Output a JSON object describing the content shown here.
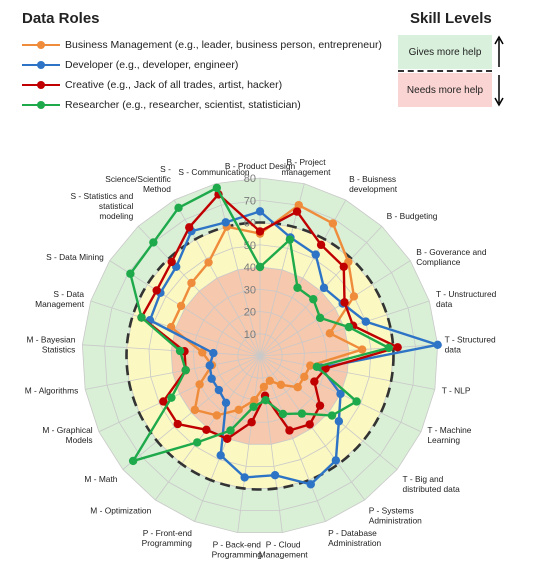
{
  "legend": {
    "title": "Data Roles",
    "items": [
      {
        "label": "Business Management (e.g., leader, business person, entrepreneur)",
        "color": "#ef8c3b",
        "icon": "line-dot-marker"
      },
      {
        "label": "Developer (e.g., developer, engineer)",
        "color": "#2e74c6",
        "icon": "line-dot-marker"
      },
      {
        "label": "Creative (e.g., Jack of all trades, artist, hacker)",
        "color": "#c00000",
        "icon": "line-dot-marker"
      },
      {
        "label": "Researcher (e.g., researcher, scientist, statistician)",
        "color": "#1ea94b",
        "icon": "line-dot-marker"
      }
    ]
  },
  "skill_levels": {
    "title": "Skill Levels",
    "more": "Gives more help",
    "less": "Needs more help",
    "arrow_icons": [
      "arrow-up-icon",
      "arrow-down-icon"
    ]
  },
  "chart_data": {
    "type": "radar",
    "rlim": [
      0,
      80
    ],
    "r_ticks": [
      "10",
      "20",
      "30",
      "40",
      "50",
      "60",
      "70",
      "80"
    ],
    "grid": true,
    "threshold": 60,
    "bands": [
      {
        "from": 0,
        "to": 40,
        "color": "#f6c8ad"
      },
      {
        "from": 40,
        "to": 60,
        "color": "#fbf8c2"
      },
      {
        "from": 60,
        "to": 80,
        "color": "#d9efd6"
      }
    ],
    "categories": [
      "B - Product Design",
      "B - Project management",
      "B - Buisness development",
      "B - Budgeting",
      "B - Goverance and Compliance",
      "T - Unstructured data",
      "T - Structured data",
      "T - NLP",
      "T - Machine Learning",
      "T - Big and distributed data",
      "P - Systems Administration",
      "P - Database Administration",
      "P - Cloud Management",
      "P - Back-end Programming",
      "P - Front-end Programming",
      "M - Optimization",
      "M - Math",
      "M - Graphical Models",
      "M - Algorithms",
      "M - Bayesian Statistics",
      "S - Data Management",
      "S - Data Mining",
      "S - Statistics and statistical modeling",
      "S - Science/Scientific Method",
      "S - Communication"
    ],
    "series": [
      {
        "name": "Business Management",
        "color": "#ef8c3b",
        "values": [
          55,
          70,
          68,
          58,
          50,
          33,
          46,
          23,
          22,
          22,
          16,
          12,
          14,
          20,
          26,
          33,
          38,
          30,
          22,
          26,
          42,
          42,
          45,
          48,
          60
        ]
      },
      {
        "name": "Developer",
        "color": "#2e74c6",
        "values": [
          65,
          55,
          52,
          42,
          44,
          50,
          80,
          28,
          40,
          46,
          58,
          62,
          54,
          55,
          48,
          26,
          24,
          24,
          23,
          21,
          52,
          53,
          55,
          64,
          62
        ]
      },
      {
        "name": "Creative",
        "color": "#c00000",
        "values": [
          56,
          67,
          57,
          55,
          45,
          44,
          62,
          30,
          27,
          35,
          38,
          36,
          18,
          30,
          40,
          41,
          48,
          48,
          34,
          34,
          56,
          55,
          58,
          66,
          75
        ]
      },
      {
        "name": "Researcher",
        "color": "#1ea94b",
        "values": [
          40,
          54,
          35,
          35,
          32,
          42,
          58,
          26,
          48,
          42,
          32,
          28,
          20,
          23,
          36,
          48,
          74,
          44,
          34,
          36,
          56,
          69,
          70,
          76,
          78
        ]
      }
    ]
  }
}
